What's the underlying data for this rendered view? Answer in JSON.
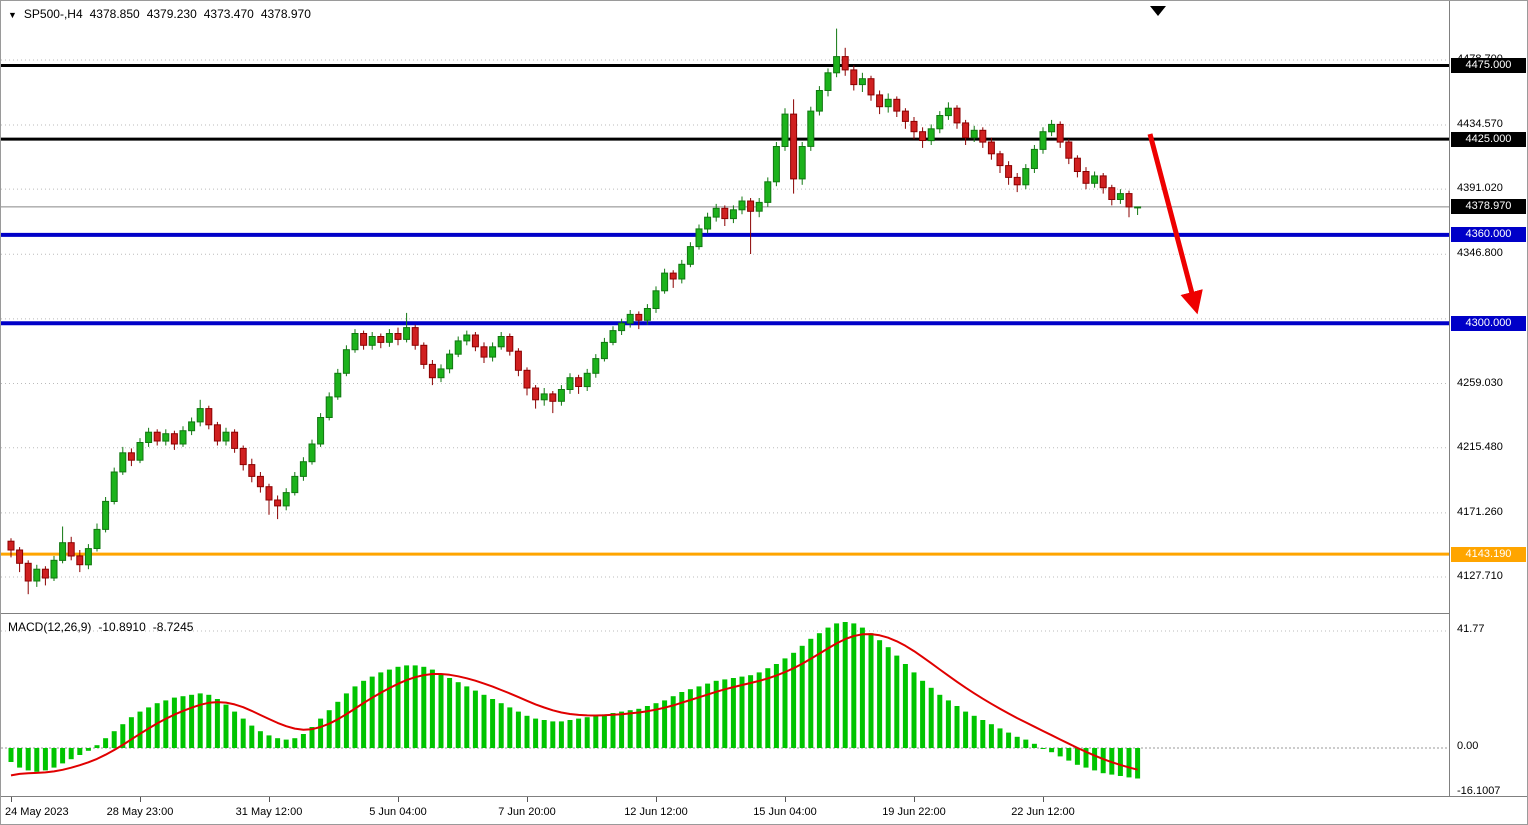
{
  "header": {
    "symbol_timeframe": "SP500-,H4",
    "open": "4378.850",
    "high": "4379.230",
    "low": "4373.470",
    "close": "4378.970"
  },
  "indicator": {
    "name": "MACD(12,26,9)",
    "macd_value": "-10.8910",
    "signal_value": "-8.7245"
  },
  "colors": {
    "bull_border": "#117711",
    "bull_fill": "#1CB21C",
    "bear_border": "#8B0000",
    "bear_fill": "#D02020",
    "macd_bar": "#00C400",
    "signal": "#E00000",
    "grid": "#BBBBBB",
    "current_line": "#888888",
    "level_black": "#000000",
    "level_blue": "#0000C8",
    "level_orange": "#FFA500",
    "arrow": "#EE0000",
    "badge_current": "#000000"
  },
  "chart_data": {
    "type": "candlestick",
    "title": "SP500- H4 candlestick chart with MACD(12,26,9)",
    "price_axis_range": [
      4103,
      4515
    ],
    "macd_axis_range": [
      -16.1007,
      47
    ],
    "grid": "horizontal-dotted",
    "price_axis_ticks": [
      {
        "price": 4478.7,
        "label": "4478.700"
      },
      {
        "price": 4434.57,
        "label": "4434.570"
      },
      {
        "price": 4391.02,
        "label": "4391.020"
      },
      {
        "price": 4346.8,
        "label": "4346.800"
      },
      {
        "price": 4302.9,
        "label": ""
      },
      {
        "price": 4259.03,
        "label": "4259.030"
      },
      {
        "price": 4215.48,
        "label": "4215.480"
      },
      {
        "price": 4171.26,
        "label": "4171.260"
      },
      {
        "price": 4127.71,
        "label": "4127.710"
      }
    ],
    "horizontal_lines": [
      {
        "price": 4475.0,
        "label": "4475.000",
        "color": "#000000",
        "width": 3
      },
      {
        "price": 4425.0,
        "label": "4425.000",
        "color": "#000000",
        "width": 3
      },
      {
        "price": 4360.0,
        "label": "4360.000",
        "color": "#0000C8",
        "width": 4
      },
      {
        "price": 4300.0,
        "label": "4300.000",
        "color": "#0000C8",
        "width": 4
      },
      {
        "price": 4143.19,
        "label": "4143.190",
        "color": "#FFA500",
        "width": 3
      }
    ],
    "current_price": {
      "value": 4378.97,
      "label": "4378.970"
    },
    "time_ticks": [
      {
        "i": 0,
        "label": "24 May 2023"
      },
      {
        "i": 15,
        "label": "28 May 23:00"
      },
      {
        "i": 30,
        "label": "31 May 12:00"
      },
      {
        "i": 45,
        "label": "5 Jun 04:00"
      },
      {
        "i": 60,
        "label": "7 Jun 20:00"
      },
      {
        "i": 75,
        "label": "12 Jun 12:00"
      },
      {
        "i": 90,
        "label": "15 Jun 04:00"
      },
      {
        "i": 105,
        "label": "19 Jun 22:00"
      },
      {
        "i": 120,
        "label": "22 Jun 12:00"
      }
    ],
    "candles": [
      [
        4152,
        4154,
        4141,
        4146
      ],
      [
        4146,
        4148,
        4131,
        4137
      ],
      [
        4137,
        4139,
        4116,
        4125
      ],
      [
        4125,
        4136,
        4121,
        4133
      ],
      [
        4133,
        4135,
        4122,
        4127
      ],
      [
        4127,
        4142,
        4125,
        4139
      ],
      [
        4139,
        4162,
        4137,
        4151
      ],
      [
        4151,
        4155,
        4139,
        4142
      ],
      [
        4142,
        4146,
        4131,
        4136
      ],
      [
        4136,
        4150,
        4133,
        4147
      ],
      [
        4147,
        4164,
        4145,
        4160
      ],
      [
        4160,
        4182,
        4158,
        4179
      ],
      [
        4179,
        4202,
        4177,
        4199
      ],
      [
        4199,
        4216,
        4197,
        4212
      ],
      [
        4212,
        4215,
        4203,
        4207
      ],
      [
        4207,
        4222,
        4205,
        4219
      ],
      [
        4219,
        4229,
        4216,
        4226
      ],
      [
        4226,
        4228,
        4217,
        4220
      ],
      [
        4220,
        4228,
        4217,
        4225
      ],
      [
        4225,
        4227,
        4214,
        4218
      ],
      [
        4218,
        4230,
        4216,
        4227
      ],
      [
        4227,
        4236,
        4224,
        4233
      ],
      [
        4233,
        4248,
        4230,
        4242
      ],
      [
        4242,
        4244,
        4228,
        4231
      ],
      [
        4231,
        4233,
        4217,
        4220
      ],
      [
        4220,
        4229,
        4217,
        4226
      ],
      [
        4226,
        4228,
        4212,
        4215
      ],
      [
        4215,
        4217,
        4200,
        4204
      ],
      [
        4204,
        4208,
        4192,
        4196
      ],
      [
        4196,
        4199,
        4185,
        4189
      ],
      [
        4189,
        4191,
        4170,
        4180
      ],
      [
        4180,
        4183,
        4167,
        4176
      ],
      [
        4176,
        4188,
        4173,
        4185
      ],
      [
        4185,
        4199,
        4183,
        4196
      ],
      [
        4196,
        4209,
        4193,
        4206
      ],
      [
        4206,
        4221,
        4204,
        4218
      ],
      [
        4218,
        4239,
        4216,
        4236
      ],
      [
        4236,
        4253,
        4234,
        4250
      ],
      [
        4250,
        4269,
        4248,
        4266
      ],
      [
        4266,
        4285,
        4264,
        4282
      ],
      [
        4282,
        4296,
        4280,
        4293
      ],
      [
        4293,
        4295,
        4282,
        4285
      ],
      [
        4285,
        4294,
        4282,
        4291
      ],
      [
        4291,
        4293,
        4283,
        4287
      ],
      [
        4287,
        4296,
        4284,
        4293
      ],
      [
        4293,
        4297,
        4285,
        4289
      ],
      [
        4289,
        4307,
        4287,
        4297
      ],
      [
        4297,
        4299,
        4282,
        4285
      ],
      [
        4285,
        4287,
        4269,
        4272
      ],
      [
        4272,
        4275,
        4258,
        4263
      ],
      [
        4263,
        4272,
        4260,
        4269
      ],
      [
        4269,
        4282,
        4266,
        4279
      ],
      [
        4279,
        4291,
        4277,
        4288
      ],
      [
        4288,
        4295,
        4285,
        4292
      ],
      [
        4292,
        4294,
        4281,
        4284
      ],
      [
        4284,
        4287,
        4273,
        4277
      ],
      [
        4277,
        4287,
        4274,
        4284
      ],
      [
        4284,
        4294,
        4282,
        4291
      ],
      [
        4291,
        4293,
        4278,
        4281
      ],
      [
        4281,
        4283,
        4264,
        4268
      ],
      [
        4268,
        4270,
        4251,
        4256
      ],
      [
        4256,
        4258,
        4242,
        4248
      ],
      [
        4248,
        4256,
        4244,
        4252
      ],
      [
        4252,
        4254,
        4239,
        4247
      ],
      [
        4247,
        4258,
        4244,
        4255
      ],
      [
        4255,
        4266,
        4252,
        4263
      ],
      [
        4263,
        4265,
        4252,
        4257
      ],
      [
        4257,
        4269,
        4254,
        4266
      ],
      [
        4266,
        4279,
        4263,
        4276
      ],
      [
        4276,
        4290,
        4274,
        4287
      ],
      [
        4287,
        4298,
        4285,
        4295
      ],
      [
        4295,
        4303,
        4292,
        4300
      ],
      [
        4300,
        4309,
        4297,
        4306
      ],
      [
        4306,
        4308,
        4296,
        4302
      ],
      [
        4302,
        4313,
        4299,
        4310
      ],
      [
        4310,
        4325,
        4307,
        4322
      ],
      [
        4322,
        4337,
        4320,
        4334
      ],
      [
        4334,
        4336,
        4324,
        4330
      ],
      [
        4330,
        4343,
        4327,
        4340
      ],
      [
        4340,
        4355,
        4338,
        4352
      ],
      [
        4352,
        4367,
        4350,
        4364
      ],
      [
        4364,
        4375,
        4361,
        4372
      ],
      [
        4372,
        4381,
        4369,
        4378
      ],
      [
        4378,
        4380,
        4366,
        4371
      ],
      [
        4371,
        4380,
        4368,
        4377
      ],
      [
        4377,
        4386,
        4374,
        4383
      ],
      [
        4383,
        4385,
        4347,
        4376
      ],
      [
        4376,
        4385,
        4372,
        4382
      ],
      [
        4382,
        4399,
        4379,
        4396
      ],
      [
        4396,
        4423,
        4393,
        4420
      ],
      [
        4420,
        4446,
        4417,
        4442
      ],
      [
        4442,
        4452,
        4388,
        4398
      ],
      [
        4398,
        4423,
        4394,
        4420
      ],
      [
        4420,
        4447,
        4417,
        4444
      ],
      [
        4444,
        4461,
        4441,
        4458
      ],
      [
        4458,
        4473,
        4454,
        4470
      ],
      [
        4470,
        4500,
        4467,
        4481
      ],
      [
        4481,
        4487,
        4468,
        4472
      ],
      [
        4472,
        4475,
        4458,
        4462
      ],
      [
        4462,
        4470,
        4457,
        4466
      ],
      [
        4466,
        4468,
        4451,
        4455
      ],
      [
        4455,
        4458,
        4442,
        4447
      ],
      [
        4447,
        4456,
        4443,
        4452
      ],
      [
        4452,
        4454,
        4440,
        4444
      ],
      [
        4444,
        4446,
        4432,
        4437
      ],
      [
        4437,
        4440,
        4425,
        4430
      ],
      [
        4430,
        4433,
        4419,
        4424
      ],
      [
        4424,
        4435,
        4421,
        4432
      ],
      [
        4432,
        4444,
        4429,
        4441
      ],
      [
        4441,
        4450,
        4438,
        4446
      ],
      [
        4446,
        4448,
        4432,
        4436
      ],
      [
        4436,
        4438,
        4421,
        4426
      ],
      [
        4426,
        4434,
        4423,
        4431
      ],
      [
        4431,
        4433,
        4419,
        4423
      ],
      [
        4423,
        4426,
        4411,
        4415
      ],
      [
        4415,
        4417,
        4402,
        4407
      ],
      [
        4407,
        4410,
        4394,
        4399
      ],
      [
        4399,
        4402,
        4389,
        4394
      ],
      [
        4394,
        4408,
        4391,
        4405
      ],
      [
        4405,
        4421,
        4402,
        4418
      ],
      [
        4418,
        4433,
        4415,
        4430
      ],
      [
        4430,
        4438,
        4427,
        4435
      ],
      [
        4435,
        4437,
        4419,
        4423
      ],
      [
        4423,
        4425,
        4408,
        4412
      ],
      [
        4412,
        4414,
        4399,
        4403
      ],
      [
        4403,
        4406,
        4391,
        4395
      ],
      [
        4395,
        4403,
        4392,
        4400
      ],
      [
        4400,
        4402,
        4388,
        4392
      ],
      [
        4392,
        4394,
        4380,
        4384
      ],
      [
        4384,
        4391,
        4381,
        4388
      ],
      [
        4388,
        4390,
        4372,
        4379
      ],
      [
        4378.85,
        4379.23,
        4373.47,
        4378.97
      ]
    ],
    "macd": {
      "name": "MACD(12,26,9)",
      "histogram": [
        -5,
        -7,
        -8,
        -8.5,
        -8,
        -7,
        -5.5,
        -4,
        -2.5,
        -1,
        1,
        3.5,
        6,
        8.5,
        11,
        13,
        14.5,
        16,
        17,
        18,
        18.5,
        19,
        19.5,
        19,
        17.5,
        15.5,
        13,
        10.5,
        8,
        6,
        4.5,
        3.5,
        3,
        3.5,
        5,
        7.5,
        10.5,
        13.5,
        16.5,
        19.5,
        22,
        24,
        25.5,
        27,
        28,
        29,
        29.5,
        29.5,
        29,
        28,
        26.5,
        25,
        23.5,
        22,
        20.5,
        19,
        17.5,
        16,
        14.5,
        13,
        11.5,
        10.5,
        10,
        9.5,
        9.5,
        10,
        10.5,
        11,
        11.5,
        12,
        12.5,
        13,
        13.5,
        14,
        15,
        16,
        17,
        18.5,
        20,
        21,
        22,
        23,
        24,
        24.5,
        25,
        25.5,
        26,
        27,
        28.5,
        30,
        32,
        34,
        36.5,
        39,
        41,
        43,
        44.5,
        45,
        44.5,
        43,
        41,
        38.5,
        36,
        33,
        30,
        27,
        24,
        21.5,
        19,
        17,
        15,
        13,
        11.5,
        10,
        8.5,
        7,
        5.5,
        4,
        3,
        1.5,
        0,
        -1.5,
        -3,
        -4.5,
        -6,
        -7,
        -8,
        -9,
        -9.5,
        -10,
        -10.5,
        -10.89
      ],
      "macd_display": "-10.8910",
      "signal_display": "-8.7245",
      "axis_ticks": [
        {
          "value": 41.77,
          "label": "41.77"
        },
        {
          "value": 0,
          "label": "0.00"
        },
        {
          "value": -16.1007,
          "label": "-16.1007"
        }
      ]
    },
    "annotation_arrow": {
      "from": [
        1149,
        133
      ],
      "to": [
        1193,
        300
      ],
      "color": "#EE0000"
    }
  }
}
